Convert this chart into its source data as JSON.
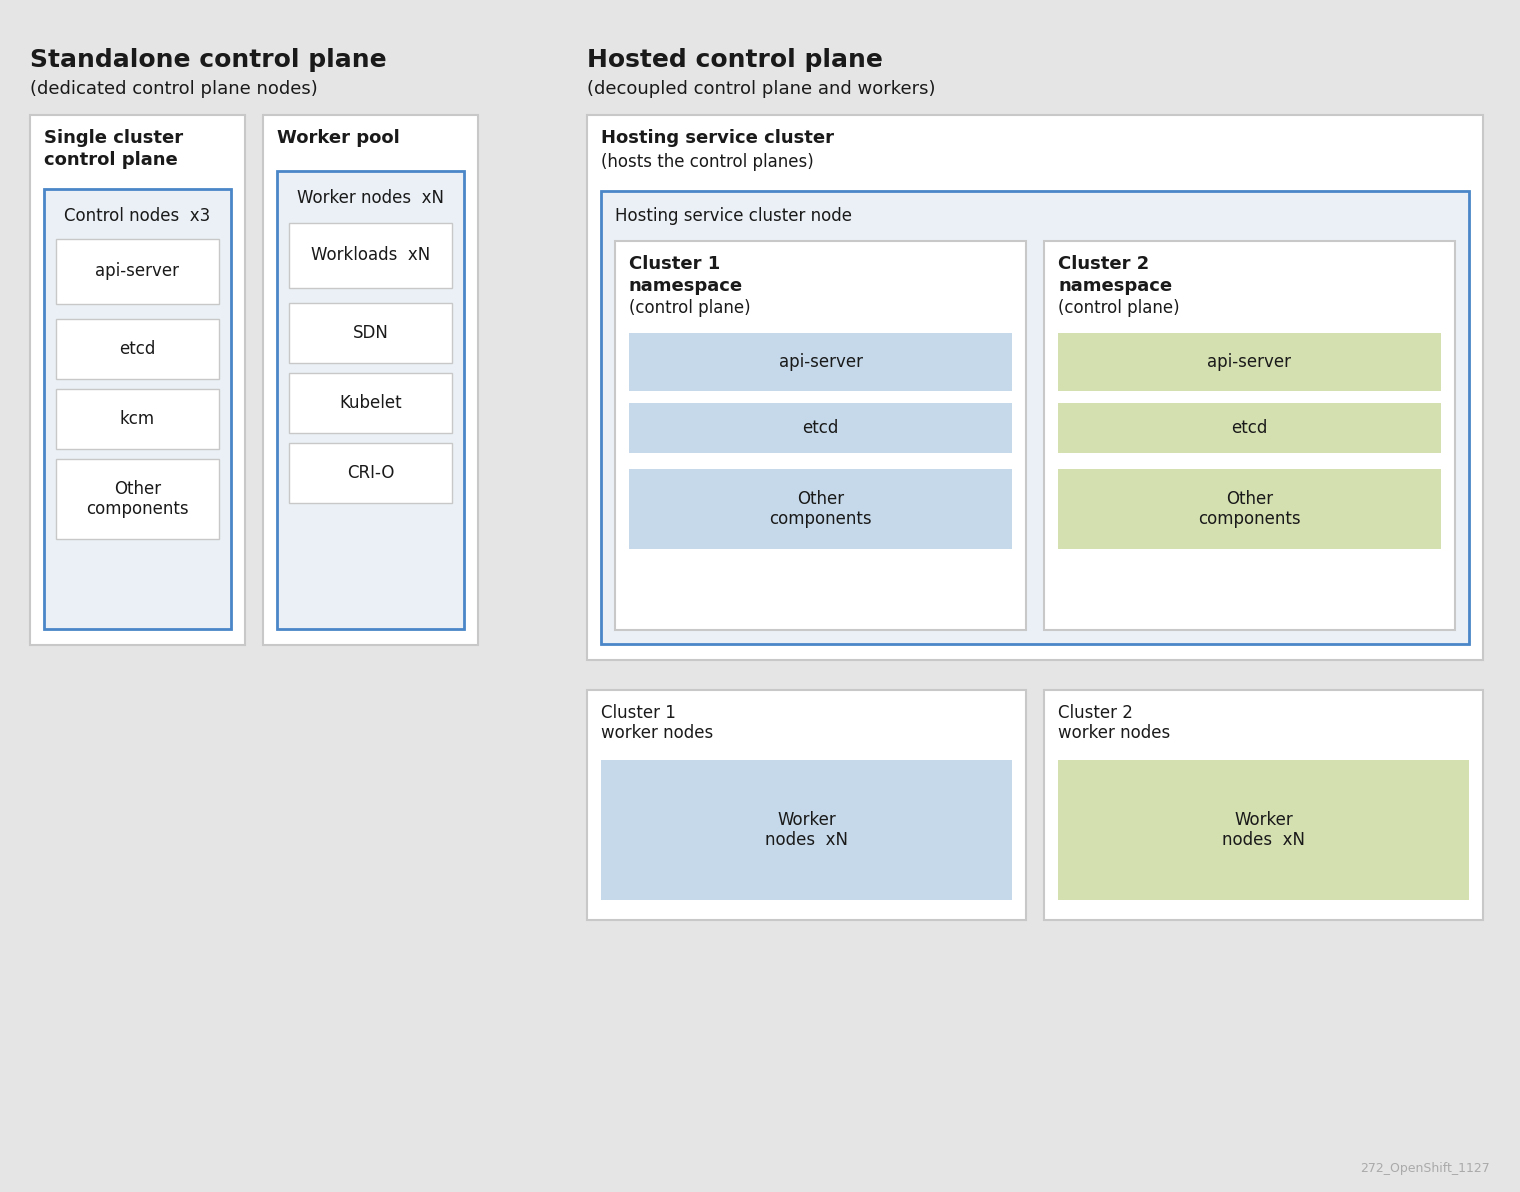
{
  "bg_color": "#e5e5e5",
  "white": "#ffffff",
  "light_blue": "#c5d9ea",
  "light_green": "#d4e0b0",
  "blue_border": "#4a86c8",
  "dark_text": "#1a1a1a",
  "mid_gray": "#c8c8c8",
  "inner_bg_blue": "#eaf0f6",
  "inner_bg_gray": "#ebebeb",
  "left_title": "Standalone control plane",
  "left_subtitle": "(dedicated control plane nodes)",
  "right_title": "Hosted control plane",
  "right_subtitle": "(decoupled control plane and workers)",
  "box1_title_line1": "Single cluster",
  "box1_title_line2": "control plane",
  "box2_title": "Worker pool",
  "ctrl_node_label": "Control nodes  x3",
  "ctrl_items": [
    "api-server",
    "etcd",
    "kcm",
    "Other\ncomponents"
  ],
  "worker_node_label": "Worker nodes  xN",
  "worker_items": [
    "Workloads  xN",
    "SDN",
    "Kubelet",
    "CRI-O"
  ],
  "hosting_title": "Hosting service cluster",
  "hosting_subtitle": "(hosts the control planes)",
  "hosting_node_label": "Hosting service cluster node",
  "c1ns_title_line1": "Cluster 1",
  "c1ns_title_line2": "namespace",
  "c1ns_title_line3": "(control plane)",
  "c2ns_title_line1": "Cluster 2",
  "c2ns_title_line2": "namespace",
  "c2ns_title_line3": "(control plane)",
  "c1ns_items": [
    "api-server",
    "etcd",
    "Other\ncomponents"
  ],
  "c2ns_items": [
    "api-server",
    "etcd",
    "Other\ncomponents"
  ],
  "c1w_title_line1": "Cluster 1",
  "c1w_title_line2": "worker nodes",
  "c2w_title_line1": "Cluster 2",
  "c2w_title_line2": "worker nodes",
  "c1w_item": "Worker\nnodes  xN",
  "c2w_item": "Worker\nnodes  xN",
  "watermark": "272_OpenShift_1127"
}
